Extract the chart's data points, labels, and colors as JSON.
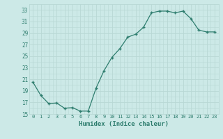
{
  "title": "",
  "xlabel": "Humidex (Indice chaleur)",
  "x": [
    0,
    1,
    2,
    3,
    4,
    5,
    6,
    7,
    8,
    9,
    10,
    11,
    12,
    13,
    14,
    15,
    16,
    17,
    18,
    19,
    20,
    21,
    22,
    23
  ],
  "y": [
    20.5,
    18.2,
    16.8,
    16.9,
    16.0,
    16.1,
    15.5,
    15.5,
    19.5,
    22.5,
    24.8,
    26.3,
    28.3,
    28.8,
    30.0,
    32.5,
    32.8,
    32.8,
    32.5,
    32.8,
    31.5,
    29.5,
    29.2,
    29.2
  ],
  "ylim": [
    15,
    34
  ],
  "yticks": [
    15,
    17,
    19,
    21,
    23,
    25,
    27,
    29,
    31,
    33
  ],
  "line_color": "#2e7d6e",
  "marker": "+",
  "bg_color": "#cce9e7",
  "grid_color": "#b8d8d5",
  "tick_label_color": "#2e7d6e",
  "axis_label_color": "#2e7d6e",
  "font": "monospace"
}
